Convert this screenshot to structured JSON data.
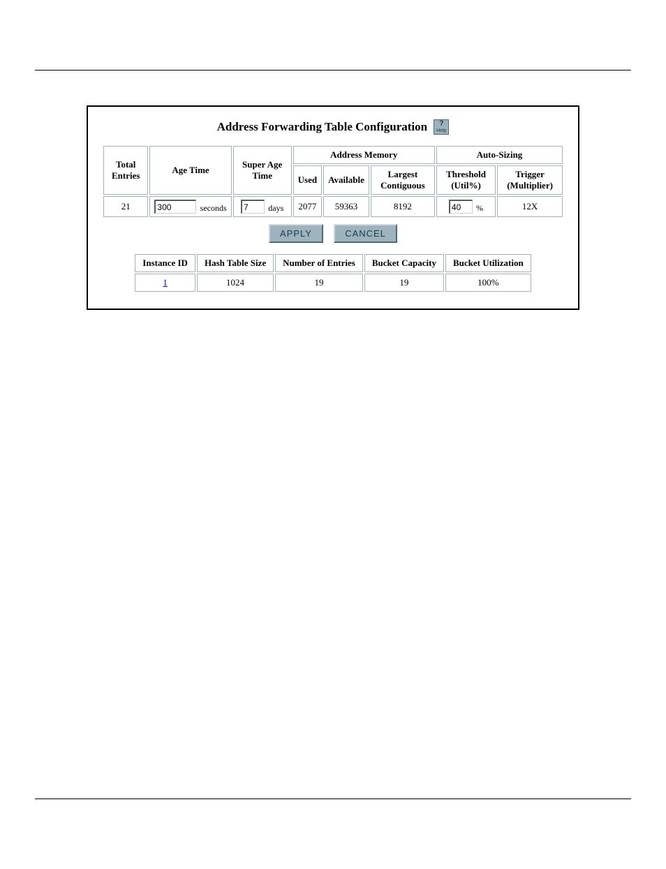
{
  "title": "Address Forwarding Table Configuration",
  "help_label": "Help",
  "headers": {
    "total_entries": "Total Entries",
    "age_time": "Age Time",
    "super_age_time": "Super Age Time",
    "address_memory": "Address Memory",
    "auto_sizing": "Auto-Sizing",
    "used": "Used",
    "available": "Available",
    "largest_contiguous": "Largest Contiguous",
    "threshold": "Threshold (Util%)",
    "trigger": "Trigger (Multiplier)"
  },
  "values": {
    "total_entries": "21",
    "age_time": "300",
    "age_time_unit": "seconds",
    "super_age_time": "7",
    "super_age_time_unit": "days",
    "used": "2077",
    "available": "59363",
    "largest_contiguous": "8192",
    "threshold": "40",
    "threshold_unit": "%",
    "trigger": "12X"
  },
  "buttons": {
    "apply": "APPLY",
    "cancel": "CANCEL"
  },
  "instance_headers": {
    "instance_id": "Instance ID",
    "hash_table_size": "Hash Table Size",
    "number_of_entries": "Number of Entries",
    "bucket_capacity": "Bucket Capacity",
    "bucket_utilization": "Bucket Utilization"
  },
  "instance_row": {
    "instance_id": "1",
    "hash_table_size": "1024",
    "number_of_entries": "19",
    "bucket_capacity": "19",
    "bucket_utilization": "100%"
  },
  "colors": {
    "border": "#9db4bf",
    "button_bg": "#9db4bf",
    "button_text": "#1a3a4a",
    "link": "#0000cc"
  }
}
